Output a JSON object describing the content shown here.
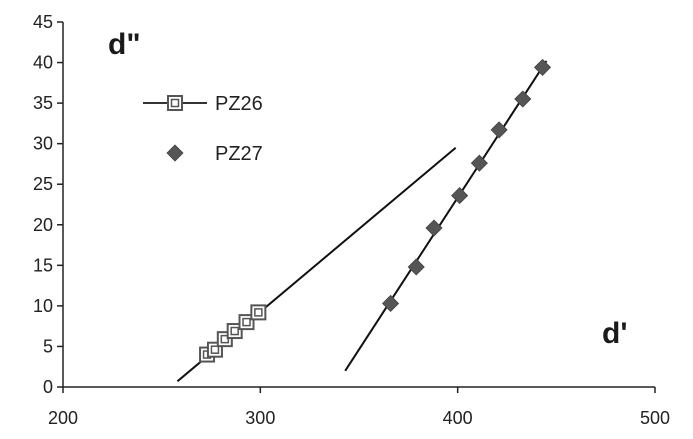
{
  "chart_data": {
    "type": "scatter",
    "xlabel": "d'",
    "ylabel": "d\"",
    "xlim": [
      200,
      500
    ],
    "ylim": [
      0,
      45
    ],
    "xticks": [
      200,
      300,
      400,
      500
    ],
    "yticks": [
      0,
      5,
      10,
      15,
      20,
      25,
      30,
      35,
      40,
      45
    ],
    "grid": false,
    "legend_position": "top-left",
    "series": [
      {
        "name": "PZ26",
        "marker": "square-outline",
        "color": "#555555",
        "points": [
          {
            "x": 273,
            "y": 4.0
          },
          {
            "x": 277,
            "y": 4.6
          },
          {
            "x": 282,
            "y": 5.9
          },
          {
            "x": 287,
            "y": 6.9
          },
          {
            "x": 293,
            "y": 8.0
          },
          {
            "x": 299,
            "y": 9.2
          }
        ],
        "trendline": {
          "x": [
            258,
            399
          ],
          "y": [
            0.7,
            29.5
          ]
        }
      },
      {
        "name": "PZ27",
        "marker": "diamond",
        "color": "#555555",
        "points": [
          {
            "x": 366,
            "y": 10.3
          },
          {
            "x": 379,
            "y": 14.8
          },
          {
            "x": 388,
            "y": 19.6
          },
          {
            "x": 401,
            "y": 23.6
          },
          {
            "x": 411,
            "y": 27.6
          },
          {
            "x": 421,
            "y": 31.7
          },
          {
            "x": 433,
            "y": 35.5
          },
          {
            "x": 443,
            "y": 39.4
          }
        ],
        "trendline": {
          "x": [
            343,
            445
          ],
          "y": [
            2.0,
            40.2
          ]
        }
      }
    ]
  }
}
